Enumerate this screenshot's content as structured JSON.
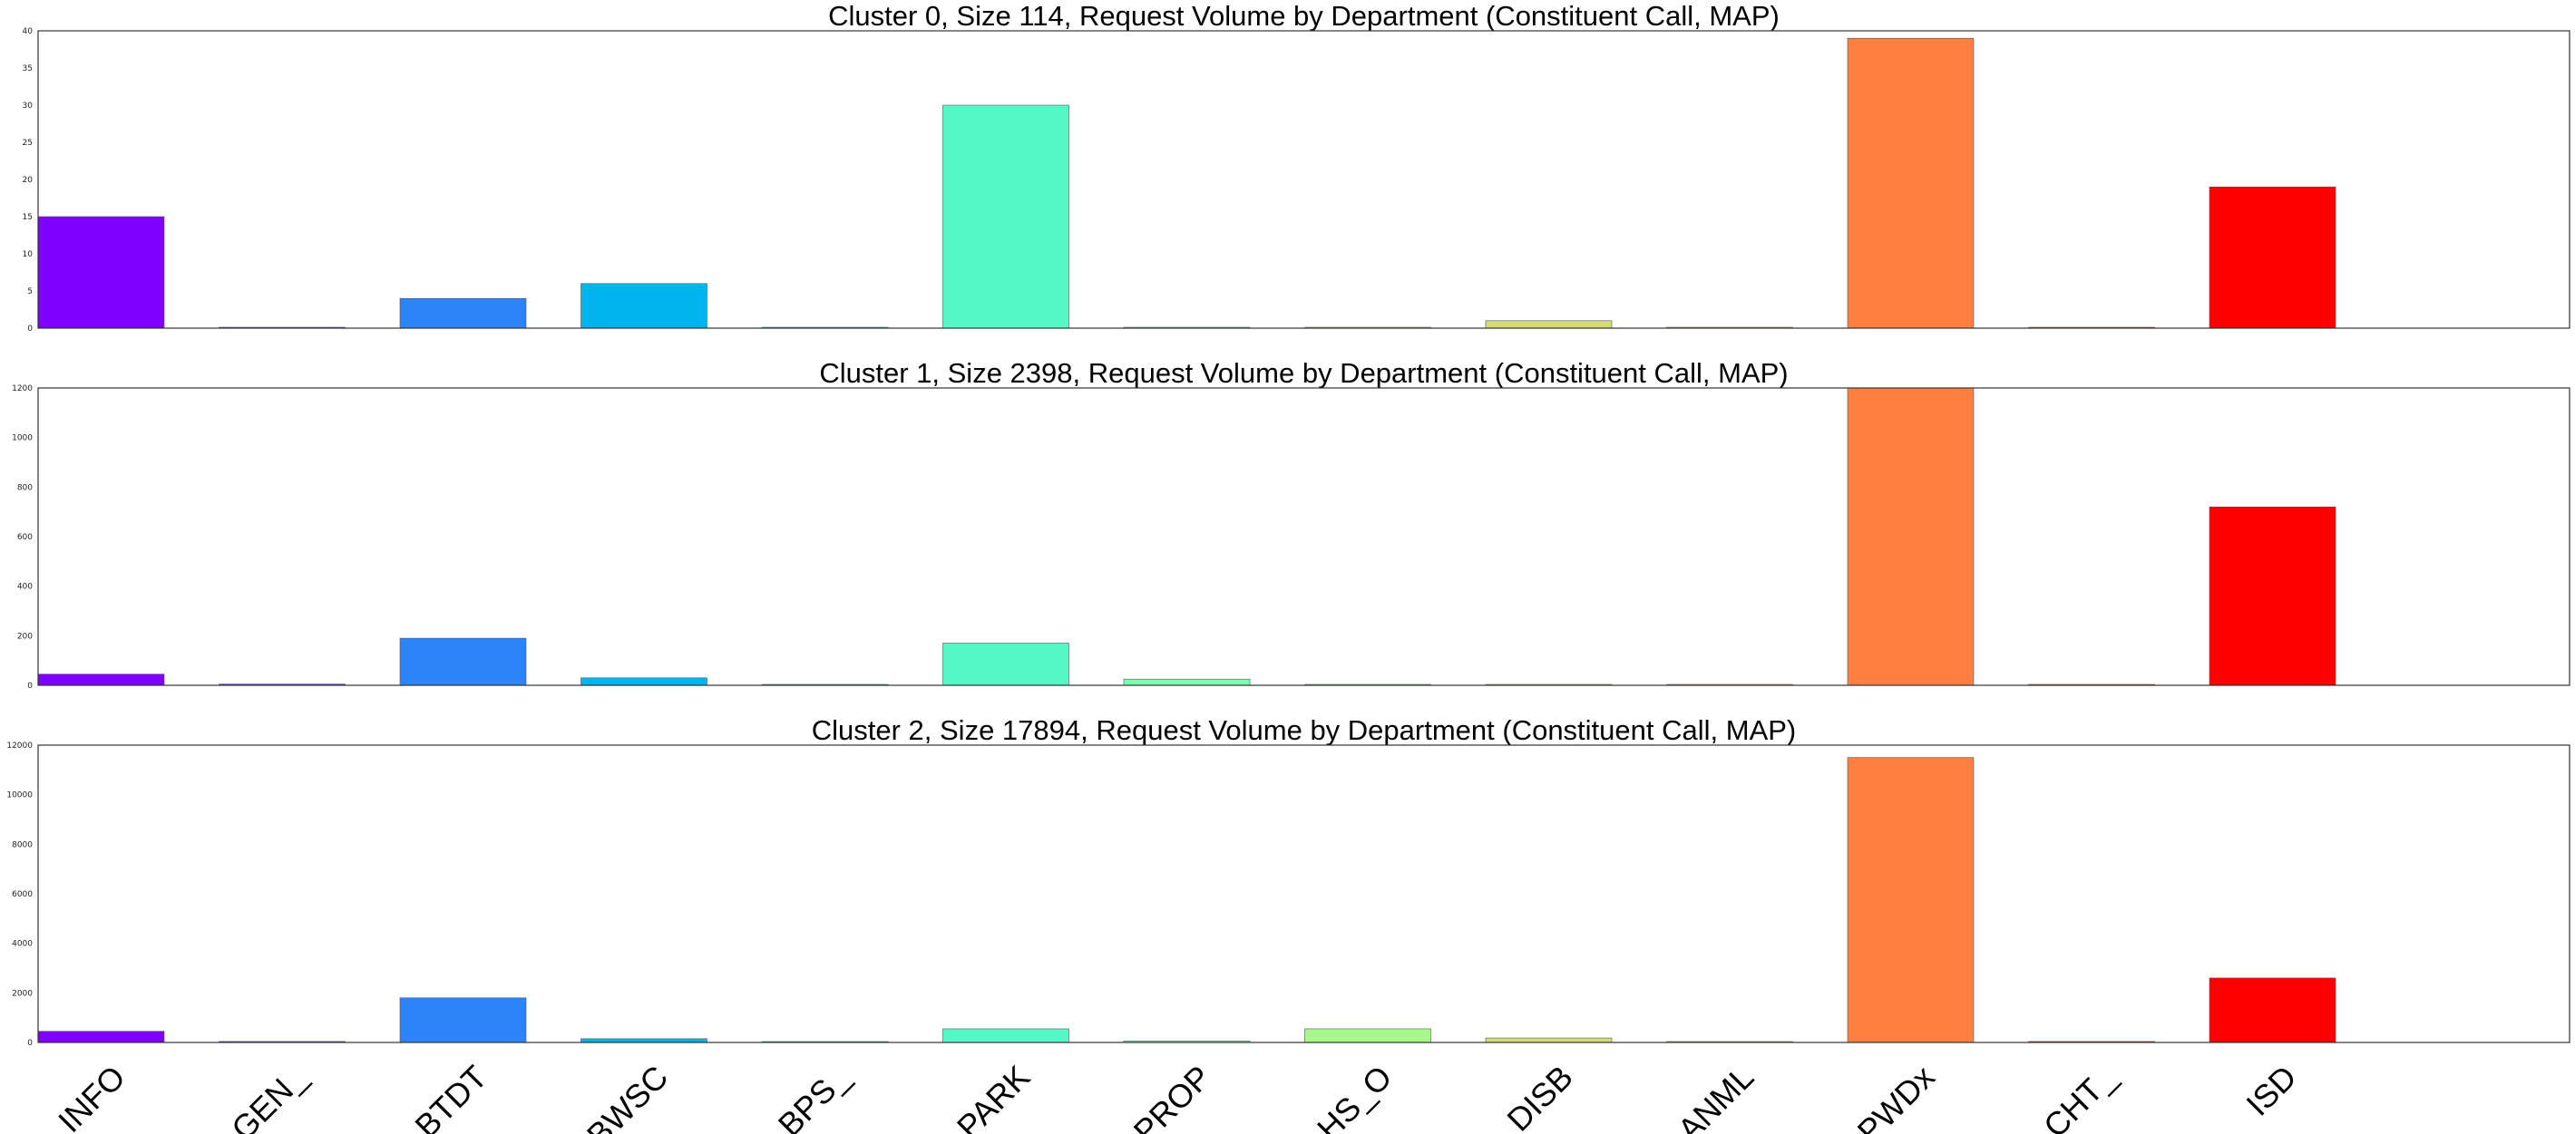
{
  "chart_data": [
    {
      "type": "bar",
      "title": "Cluster 0, Size 114, Request Volume by Department (Constituent Call, MAP)",
      "categories": [
        "INFO",
        "GEN_",
        "BTDT",
        "BWSC",
        "BPS_",
        "PARK",
        "PROP",
        "HS_O",
        "DISB",
        "ANML",
        "PWDx",
        "CHT_",
        "ISD"
      ],
      "values": [
        15,
        0,
        4,
        6,
        0,
        30,
        0,
        0,
        1,
        0,
        39,
        0,
        19
      ],
      "ylim": [
        0,
        40
      ],
      "yticks": [
        0,
        5,
        10,
        15,
        20,
        25,
        30,
        35,
        40
      ],
      "show_xtick_labels": false,
      "grid": false,
      "xlabel": "",
      "ylabel": ""
    },
    {
      "type": "bar",
      "title": "Cluster 1, Size 2398, Request Volume by Department (Constituent Call, MAP)",
      "categories": [
        "INFO",
        "GEN_",
        "BTDT",
        "BWSC",
        "BPS_",
        "PARK",
        "PROP",
        "HS_O",
        "DISB",
        "ANML",
        "PWDx",
        "CHT_",
        "ISD"
      ],
      "values": [
        45,
        5,
        190,
        30,
        1,
        170,
        25,
        3,
        1,
        1,
        1200,
        1,
        720
      ],
      "ylim": [
        0,
        1200
      ],
      "yticks": [
        0,
        200,
        400,
        600,
        800,
        1000,
        1200
      ],
      "show_xtick_labels": false,
      "grid": false,
      "xlabel": "",
      "ylabel": ""
    },
    {
      "type": "bar",
      "title": "Cluster 2, Size 17894, Request Volume by Department (Constituent Call, MAP)",
      "categories": [
        "INFO",
        "GEN_",
        "BTDT",
        "BWSC",
        "BPS_",
        "PARK",
        "PROP",
        "HS_O",
        "DISB",
        "ANML",
        "PWDx",
        "CHT_",
        "ISD"
      ],
      "values": [
        450,
        40,
        1800,
        150,
        5,
        550,
        60,
        550,
        180,
        30,
        11500,
        40,
        2600
      ],
      "ylim": [
        0,
        12000
      ],
      "yticks": [
        0,
        2000,
        4000,
        6000,
        8000,
        10000,
        12000
      ],
      "show_xtick_labels": true,
      "grid": false,
      "xlabel": "",
      "ylabel": ""
    }
  ],
  "colors": {
    "bars": [
      "#8000ff",
      "#5b3cfd",
      "#2d84f8",
      "#00b5eb",
      "#28d9d8",
      "#54f8c6",
      "#7cfdb0",
      "#a8f78c",
      "#d4dc76",
      "#ffb360",
      "#ff7f40",
      "#ff4520",
      "#ff0000"
    ],
    "bar_edge": "#555555",
    "frame": "#333333"
  }
}
